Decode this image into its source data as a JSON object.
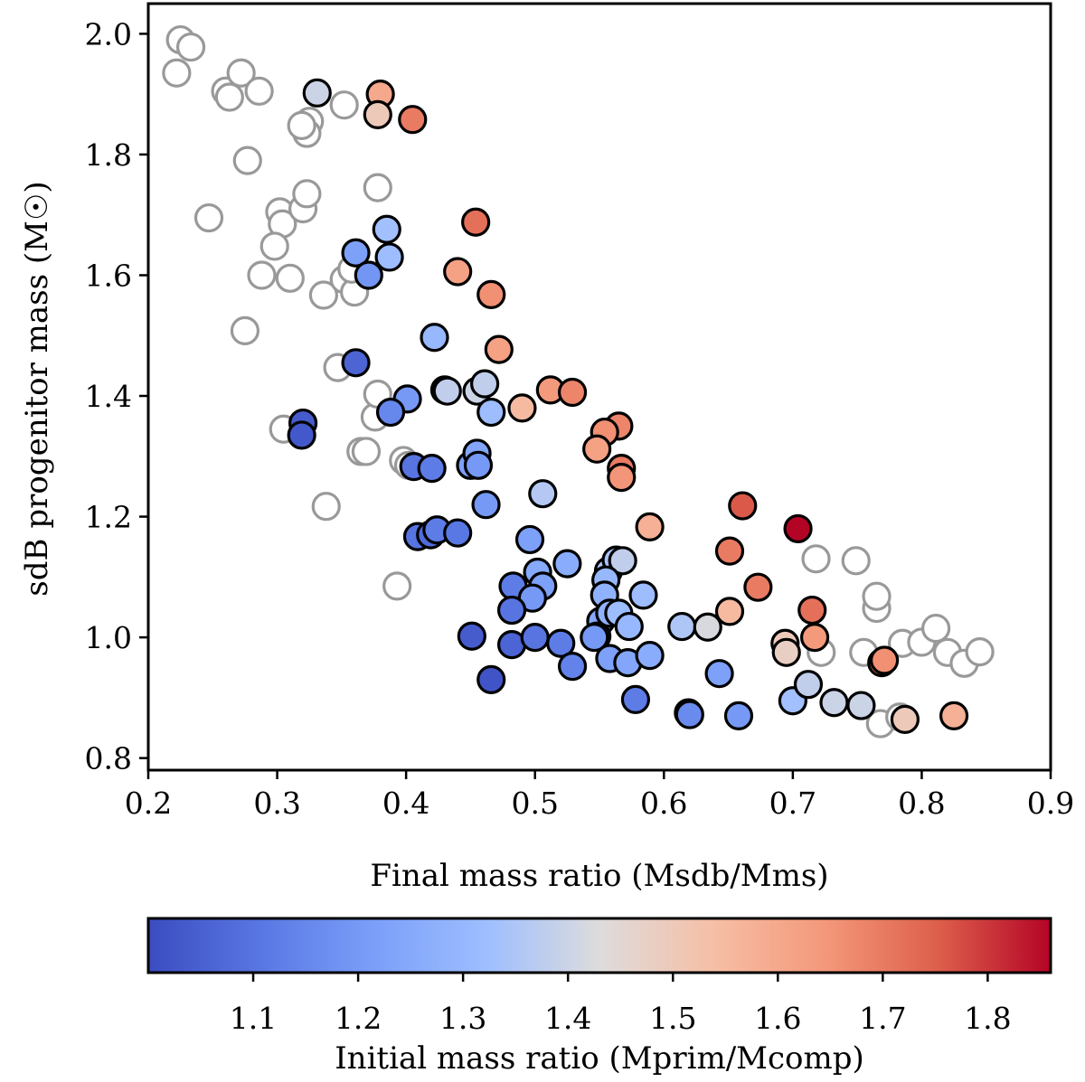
{
  "chart_data": {
    "type": "scatter",
    "title": "",
    "xlabel": "Final mass ratio (Msdb/Mms)",
    "ylabel": "sdB progenitor mass (M☉)",
    "xlim": [
      0.2,
      0.9
    ],
    "ylim": [
      0.78,
      2.05
    ],
    "xticks": [
      0.2,
      0.3,
      0.4,
      0.5,
      0.6,
      0.7,
      0.8,
      0.9
    ],
    "yticks": [
      0.8,
      1.0,
      1.2,
      1.4,
      1.6,
      1.8,
      2.0
    ],
    "grid": false,
    "colorbar": {
      "label": "Initial mass ratio (Mprim/Mcomp)",
      "range": [
        1.0,
        1.86
      ],
      "ticks": [
        1.1,
        1.2,
        1.3,
        1.4,
        1.5,
        1.6,
        1.7,
        1.8
      ],
      "colormap": "coolwarm",
      "orientation": "horizontal"
    },
    "series": [
      {
        "style": "open-gray",
        "color": "#999999",
        "points": [
          [
            0.222,
            1.935
          ],
          [
            0.225,
            1.99
          ],
          [
            0.233,
            1.978
          ],
          [
            0.26,
            1.905
          ],
          [
            0.263,
            1.895
          ],
          [
            0.272,
            1.935
          ],
          [
            0.286,
            1.905
          ],
          [
            0.247,
            1.695
          ],
          [
            0.277,
            1.79
          ],
          [
            0.302,
            1.705
          ],
          [
            0.304,
            1.685
          ],
          [
            0.298,
            1.648
          ],
          [
            0.288,
            1.6
          ],
          [
            0.31,
            1.595
          ],
          [
            0.275,
            1.508
          ],
          [
            0.32,
            1.71
          ],
          [
            0.323,
            1.735
          ],
          [
            0.325,
            1.855
          ],
          [
            0.323,
            1.835
          ],
          [
            0.319,
            1.848
          ],
          [
            0.336,
            1.567
          ],
          [
            0.352,
            1.882
          ],
          [
            0.378,
            1.745
          ],
          [
            0.352,
            1.593
          ],
          [
            0.36,
            1.572
          ],
          [
            0.347,
            1.447
          ],
          [
            0.358,
            1.61
          ],
          [
            0.305,
            1.345
          ],
          [
            0.338,
            1.217
          ],
          [
            0.365,
            1.308
          ],
          [
            0.369,
            1.308
          ],
          [
            0.376,
            1.365
          ],
          [
            0.378,
            1.403
          ],
          [
            0.398,
            1.293
          ],
          [
            0.402,
            1.285
          ],
          [
            0.393,
            1.085
          ],
          [
            0.765,
            1.048
          ],
          [
            0.718,
            1.13
          ],
          [
            0.749,
            1.127
          ],
          [
            0.765,
            1.068
          ],
          [
            0.755,
            0.975
          ],
          [
            0.722,
            0.975
          ],
          [
            0.768,
            0.857
          ],
          [
            0.783,
            0.868
          ],
          [
            0.785,
            0.99
          ],
          [
            0.8,
            0.992
          ],
          [
            0.811,
            1.015
          ],
          [
            0.82,
            0.975
          ],
          [
            0.833,
            0.957
          ],
          [
            0.845,
            0.976
          ]
        ]
      },
      {
        "style": "filled",
        "points": [
          [
            0.331,
            1.902,
            1.4
          ],
          [
            0.38,
            1.9,
            1.6
          ],
          [
            0.378,
            1.866,
            1.5
          ],
          [
            0.405,
            1.858,
            1.7
          ],
          [
            0.454,
            1.688,
            1.72
          ],
          [
            0.385,
            1.676,
            1.33
          ],
          [
            0.387,
            1.63,
            1.32
          ],
          [
            0.361,
            1.637,
            1.22
          ],
          [
            0.371,
            1.6,
            1.19
          ],
          [
            0.44,
            1.606,
            1.62
          ],
          [
            0.466,
            1.568,
            1.66
          ],
          [
            0.472,
            1.477,
            1.62
          ],
          [
            0.422,
            1.497,
            1.3
          ],
          [
            0.361,
            1.455,
            1.06
          ],
          [
            0.43,
            1.41,
            1.28
          ],
          [
            0.432,
            1.408,
            1.38
          ],
          [
            0.455,
            1.408,
            1.4
          ],
          [
            0.461,
            1.42,
            1.38
          ],
          [
            0.466,
            1.373,
            1.32
          ],
          [
            0.49,
            1.38,
            1.55
          ],
          [
            0.512,
            1.41,
            1.64
          ],
          [
            0.529,
            1.406,
            1.68
          ],
          [
            0.401,
            1.395,
            1.2
          ],
          [
            0.388,
            1.373,
            1.15
          ],
          [
            0.32,
            1.355,
            1.04
          ],
          [
            0.319,
            1.335,
            1.03
          ],
          [
            0.565,
            1.35,
            1.68
          ],
          [
            0.554,
            1.34,
            1.66
          ],
          [
            0.548,
            1.312,
            1.62
          ],
          [
            0.567,
            1.28,
            1.7
          ],
          [
            0.567,
            1.265,
            1.65
          ],
          [
            0.406,
            1.283,
            1.1
          ],
          [
            0.42,
            1.28,
            1.12
          ],
          [
            0.45,
            1.285,
            1.22
          ],
          [
            0.455,
            1.305,
            1.24
          ],
          [
            0.456,
            1.285,
            1.2
          ],
          [
            0.462,
            1.22,
            1.2
          ],
          [
            0.506,
            1.238,
            1.36
          ],
          [
            0.589,
            1.183,
            1.58
          ],
          [
            0.661,
            1.218,
            1.76
          ],
          [
            0.704,
            1.18,
            1.86
          ],
          [
            0.409,
            1.167,
            1.1
          ],
          [
            0.419,
            1.17,
            1.08
          ],
          [
            0.424,
            1.178,
            1.12
          ],
          [
            0.44,
            1.173,
            1.11
          ],
          [
            0.496,
            1.162,
            1.22
          ],
          [
            0.525,
            1.122,
            1.26
          ],
          [
            0.557,
            1.11,
            1.35
          ],
          [
            0.563,
            1.128,
            1.34
          ],
          [
            0.568,
            1.127,
            1.38
          ],
          [
            0.651,
            1.143,
            1.7
          ],
          [
            0.673,
            1.083,
            1.7
          ],
          [
            0.715,
            1.045,
            1.72
          ],
          [
            0.483,
            1.085,
            1.12
          ],
          [
            0.502,
            1.108,
            1.25
          ],
          [
            0.506,
            1.085,
            1.22
          ],
          [
            0.498,
            1.065,
            1.2
          ],
          [
            0.482,
            1.045,
            1.1
          ],
          [
            0.555,
            1.095,
            1.3
          ],
          [
            0.554,
            1.07,
            1.28
          ],
          [
            0.551,
            1.027,
            1.25
          ],
          [
            0.548,
            1.002,
            1.22
          ],
          [
            0.558,
            1.04,
            1.28
          ],
          [
            0.565,
            1.04,
            1.32
          ],
          [
            0.573,
            1.018,
            1.3
          ],
          [
            0.584,
            1.07,
            1.32
          ],
          [
            0.451,
            1.002,
            1.04
          ],
          [
            0.482,
            0.988,
            1.06
          ],
          [
            0.5,
            1.0,
            1.1
          ],
          [
            0.52,
            0.99,
            1.12
          ],
          [
            0.529,
            0.952,
            1.14
          ],
          [
            0.546,
            1.0,
            1.2
          ],
          [
            0.558,
            0.965,
            1.22
          ],
          [
            0.572,
            0.958,
            1.24
          ],
          [
            0.589,
            0.97,
            1.26
          ],
          [
            0.466,
            0.93,
            1.02
          ],
          [
            0.578,
            0.897,
            1.12
          ],
          [
            0.619,
            0.875,
            1.14
          ],
          [
            0.62,
            0.872,
            1.16
          ],
          [
            0.643,
            0.94,
            1.22
          ],
          [
            0.658,
            0.87,
            1.2
          ],
          [
            0.614,
            1.018,
            1.35
          ],
          [
            0.634,
            1.017,
            1.42
          ],
          [
            0.651,
            1.043,
            1.55
          ],
          [
            0.694,
            0.99,
            1.5
          ],
          [
            0.695,
            0.975,
            1.48
          ],
          [
            0.717,
            1.0,
            1.64
          ],
          [
            0.769,
            0.958,
            1.7
          ],
          [
            0.771,
            0.962,
            1.66
          ],
          [
            0.787,
            0.864,
            1.5
          ],
          [
            0.825,
            0.87,
            1.58
          ],
          [
            0.7,
            0.895,
            1.33
          ],
          [
            0.712,
            0.922,
            1.38
          ],
          [
            0.732,
            0.892,
            1.4
          ],
          [
            0.753,
            0.887,
            1.4
          ]
        ]
      }
    ]
  }
}
